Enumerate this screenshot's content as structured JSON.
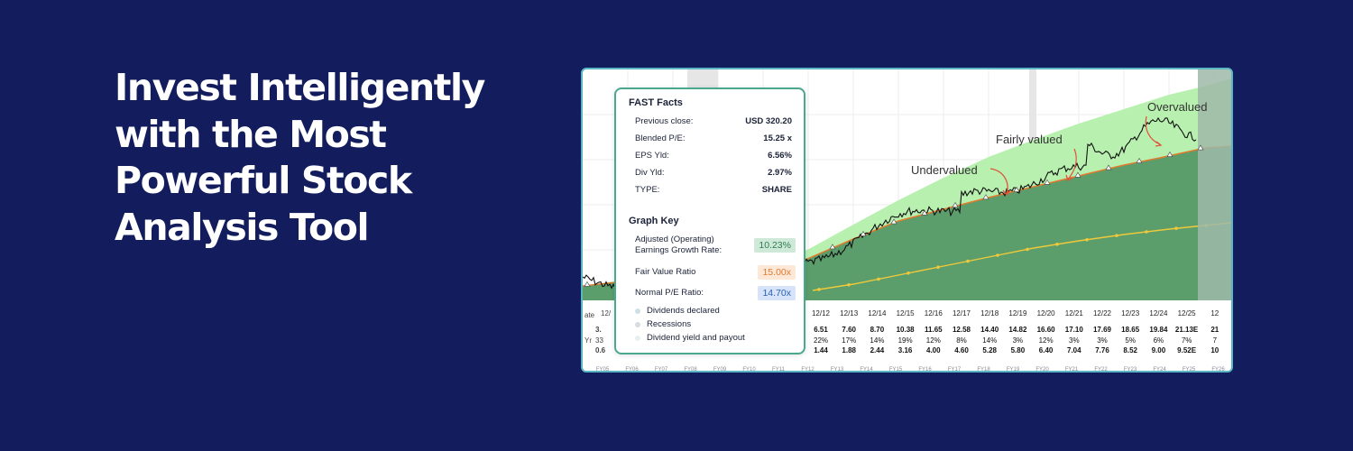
{
  "headline": {
    "lines": [
      "Invest Intelligently",
      "with the Most",
      "Powerful Stock",
      "Analysis Tool"
    ]
  },
  "fast_facts": {
    "title": "FAST Facts",
    "rows": [
      {
        "label": "Previous close:",
        "value": "USD 320.20"
      },
      {
        "label": "Blended P/E:",
        "value": "15.25 x"
      },
      {
        "label": "EPS Yld:",
        "value": "6.56%"
      },
      {
        "label": "Div Yld:",
        "value": "2.97%"
      },
      {
        "label": "TYPE:",
        "value": "SHARE"
      }
    ]
  },
  "graph_key": {
    "title": "Graph Key",
    "items": [
      {
        "label_line1": "Adjusted (Operating)",
        "label_line2": "Earnings Growth Rate:",
        "value": "10.23%",
        "color": "#2e7d4f",
        "bg": "#cfe9d8"
      },
      {
        "label_line1": "Fair Value Ratio",
        "label_line2": "",
        "value": "15.00x",
        "color": "#e07b2e",
        "bg": "#fde8d8"
      },
      {
        "label_line1": "Normal P/E Ratio:",
        "label_line2": "",
        "value": "14.70x",
        "color": "#2d5fb8",
        "bg": "#d6e3f8"
      }
    ],
    "legend": [
      {
        "label": "Dividends declared",
        "color": "#cfe0e4"
      },
      {
        "label": "Recessions",
        "color": "#d9dde0"
      },
      {
        "label": "Dividend yield and payout",
        "color": "#e8f0f2"
      }
    ]
  },
  "annotations": {
    "overvalued": "Overvalued",
    "fairly_valued": "Fairly valued",
    "undervalued": "Undervalued"
  },
  "table": {
    "left_fragments": [
      "ate",
      "3.",
      "33",
      "0.6",
      "Yr",
      "12/"
    ],
    "columns": [
      {
        "date": "12/12",
        "eps": "6.51",
        "chg": "22%",
        "div": "1.44"
      },
      {
        "date": "12/13",
        "eps": "7.60",
        "chg": "17%",
        "div": "1.88"
      },
      {
        "date": "12/14",
        "eps": "8.70",
        "chg": "14%",
        "div": "2.44"
      },
      {
        "date": "12/15",
        "eps": "10.38",
        "chg": "19%",
        "div": "3.16"
      },
      {
        "date": "12/16",
        "eps": "11.65",
        "chg": "12%",
        "div": "4.00"
      },
      {
        "date": "12/17",
        "eps": "12.58",
        "chg": "8%",
        "div": "4.60"
      },
      {
        "date": "12/18",
        "eps": "14.40",
        "chg": "14%",
        "div": "5.28"
      },
      {
        "date": "12/19",
        "eps": "14.82",
        "chg": "3%",
        "div": "5.80"
      },
      {
        "date": "12/20",
        "eps": "16.60",
        "chg": "12%",
        "div": "6.40"
      },
      {
        "date": "12/21",
        "eps": "17.10",
        "chg": "3%",
        "div": "7.04"
      },
      {
        "date": "12/22",
        "eps": "17.69",
        "chg": "3%",
        "div": "7.76"
      },
      {
        "date": "12/23",
        "eps": "18.65",
        "chg": "5%",
        "div": "8.52"
      },
      {
        "date": "12/24",
        "eps": "19.84",
        "chg": "6%",
        "div": "9.00"
      },
      {
        "date": "12/25",
        "eps": "21.13E",
        "chg": "7%",
        "div": "9.52E"
      },
      {
        "date": "12",
        "eps": "21",
        "chg": "7",
        "div": "10"
      }
    ],
    "fiscal_years": [
      "FY05",
      "FY06",
      "FY07",
      "FY08",
      "FY09",
      "FY10",
      "FY11",
      "FY12",
      "FY13",
      "FY14",
      "FY15",
      "FY16",
      "FY17",
      "FY18",
      "FY19",
      "FY20",
      "FY21",
      "FY22",
      "FY23",
      "FY24",
      "FY25",
      "FY26"
    ]
  },
  "chart_data": {
    "type": "area",
    "x_labels": [
      "12/12",
      "12/13",
      "12/14",
      "12/15",
      "12/16",
      "12/17",
      "12/18",
      "12/19",
      "12/20",
      "12/21",
      "12/22",
      "12/23",
      "12/24",
      "12/25"
    ],
    "series": [
      {
        "name": "Adjusted (Operating) Earnings Growth Rate",
        "color": "#2e7d4f"
      },
      {
        "name": "Fair Value Ratio",
        "color": "#e07b2e"
      },
      {
        "name": "Normal P/E Ratio:",
        "color": "#2d5fb8"
      }
    ],
    "colors": {
      "overvalued_fill": "#b8f0b0",
      "fair_fill": "#5b9e6c",
      "price_line": "#111111",
      "dividend_line": "#f0c93a",
      "fair_line": "#e07b2e",
      "recession": "#e6e6e6",
      "forecast": "#9fb8a8"
    }
  }
}
